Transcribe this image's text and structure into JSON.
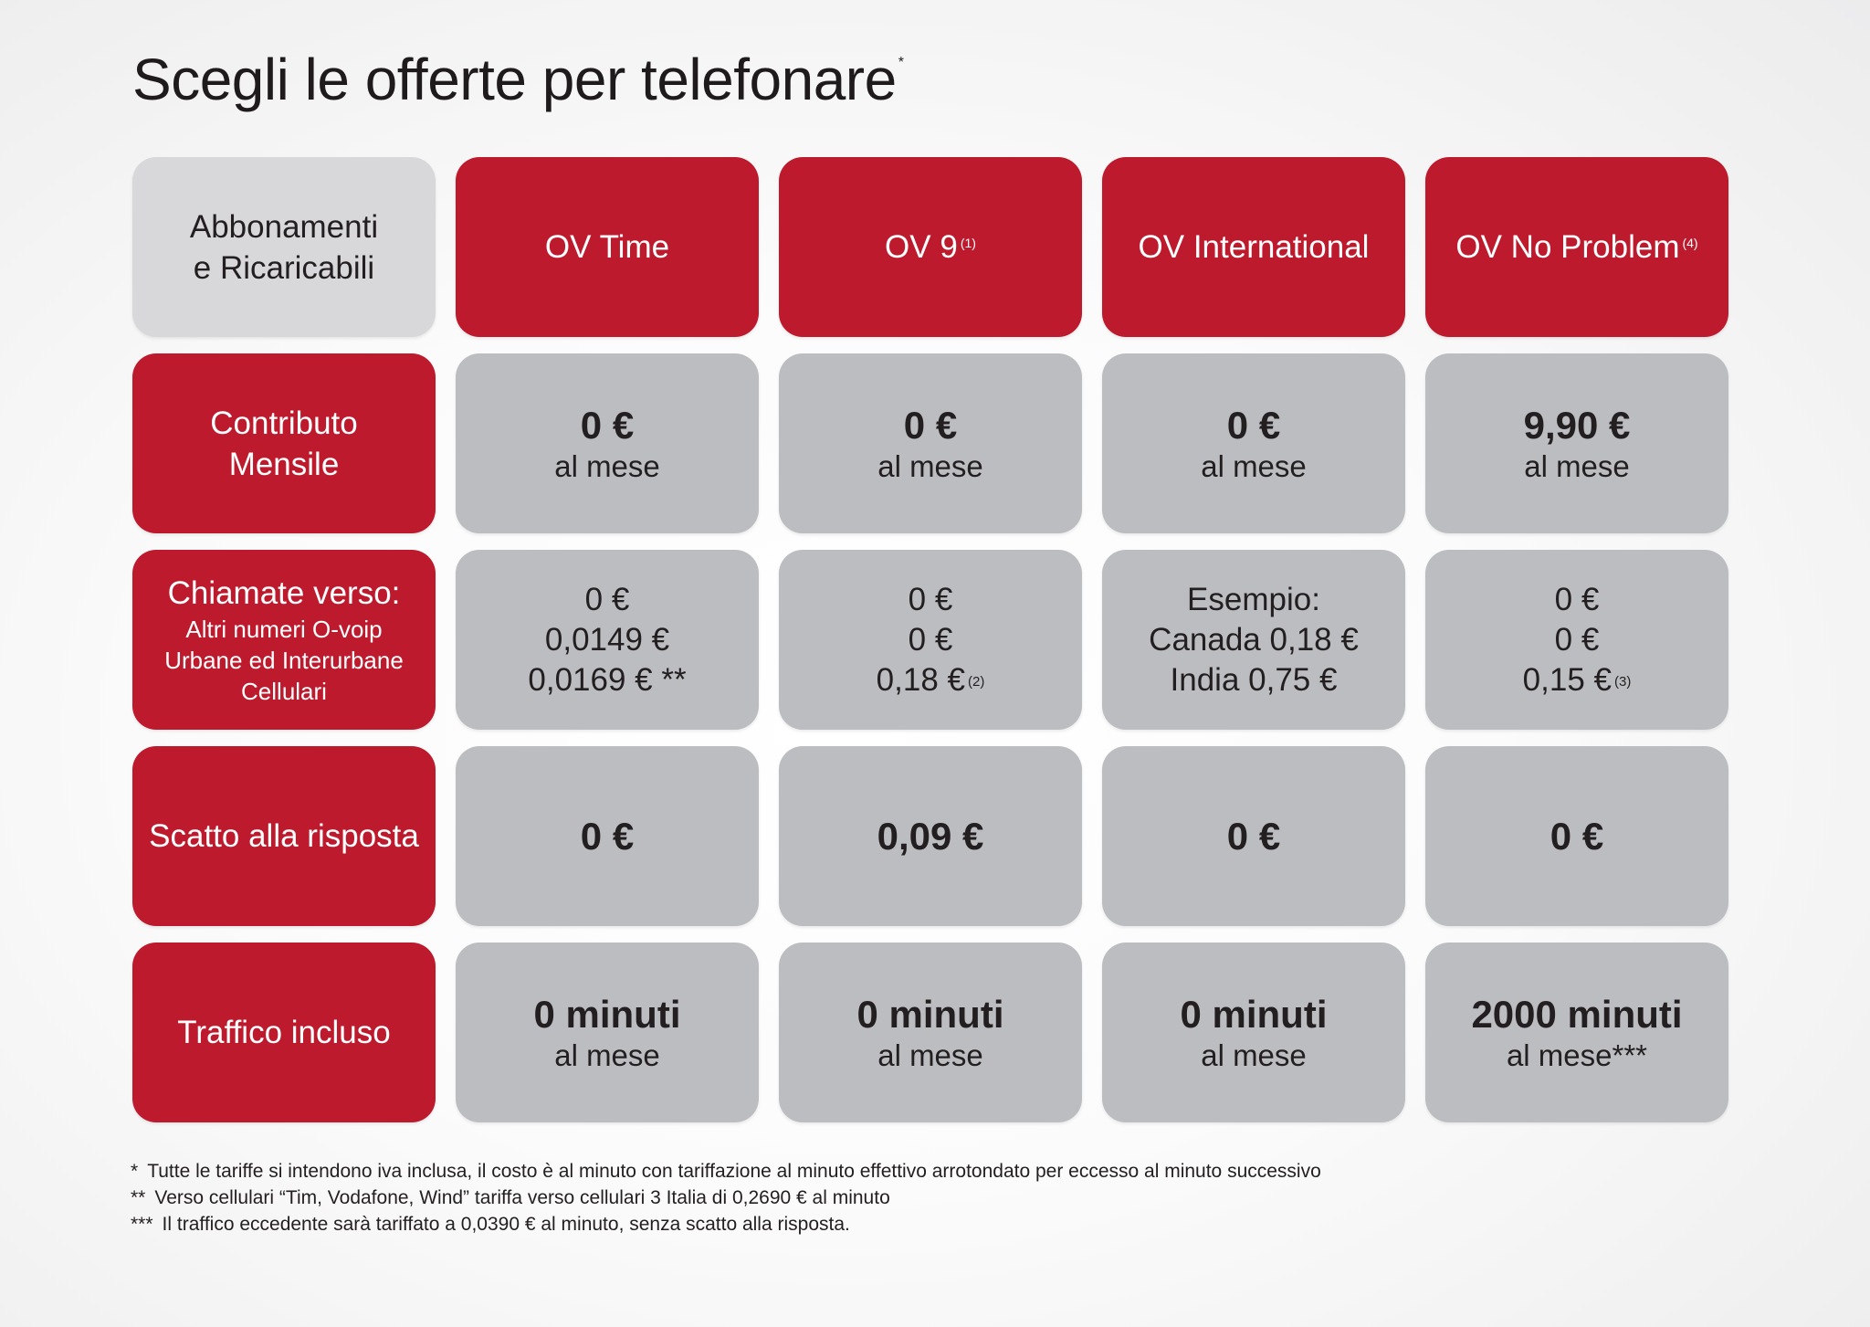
{
  "title": "Scegli le offerte per telefonare",
  "title_mark": "*",
  "header": {
    "corner_line1": "Abbonamenti",
    "corner_line2": "e Ricaricabili",
    "plans": [
      {
        "name": "OV Time",
        "note": ""
      },
      {
        "name": "OV 9",
        "note": "(1)"
      },
      {
        "name": "OV International",
        "note": ""
      },
      {
        "name": "OV No Problem",
        "note": "(4)"
      }
    ]
  },
  "rows": {
    "contributo": {
      "label_line1": "Contributo",
      "label_line2": "Mensile",
      "values": [
        {
          "main": "0 €",
          "sub": "al mese"
        },
        {
          "main": "0 €",
          "sub": "al mese"
        },
        {
          "main": "0 €",
          "sub": "al mese"
        },
        {
          "main": "9,90 €",
          "sub": "al mese"
        }
      ]
    },
    "chiamate": {
      "label_title": "Chiamate verso:",
      "label_line1": "Altri numeri O-voip",
      "label_line2": "Urbane ed Interurbane",
      "label_line3": "Cellulari",
      "values": [
        {
          "l1": "0 €",
          "l2": "0,0149 €",
          "l3": "0,0169 € **",
          "note": ""
        },
        {
          "l1": "0 €",
          "l2": "0 €",
          "l3": "0,18 €",
          "note": "(2)"
        },
        {
          "l1": "Esempio:",
          "l2": "Canada 0,18 €",
          "l3": "India 0,75 €",
          "note": ""
        },
        {
          "l1": "0 €",
          "l2": "0 €",
          "l3": "0,15 €",
          "note": "(3)"
        }
      ]
    },
    "scatto": {
      "label": "Scatto alla risposta",
      "values": [
        "0 €",
        "0,09 €",
        "0 €",
        "0 €"
      ]
    },
    "traffico": {
      "label": "Traffico incluso",
      "values": [
        {
          "main": "0 minuti",
          "sub": "al mese"
        },
        {
          "main": "0 minuti",
          "sub": "al mese"
        },
        {
          "main": "0 minuti",
          "sub": "al mese"
        },
        {
          "main": "2000 minuti",
          "sub": "al mese***"
        }
      ]
    }
  },
  "footnotes": [
    {
      "mark": "*",
      "text": "Tutte le tariffe si intendono iva inclusa, il costo è al minuto con tariffazione al minuto effettivo arrotondato per eccesso al minuto successivo"
    },
    {
      "mark": "**",
      "text": "Verso cellulari “Tim, Vodafone, Wind” tariffa verso cellulari 3 Italia di 0,2690 € al minuto"
    },
    {
      "mark": "***",
      "text": "Il traffico eccedente sarà tariffato a 0,0390 € al minuto, senza scatto alla risposta."
    }
  ],
  "colors": {
    "accent_red": "#bd1a2d",
    "cell_grey": "#bcbdc0",
    "corner_grey": "#d8d8da"
  }
}
